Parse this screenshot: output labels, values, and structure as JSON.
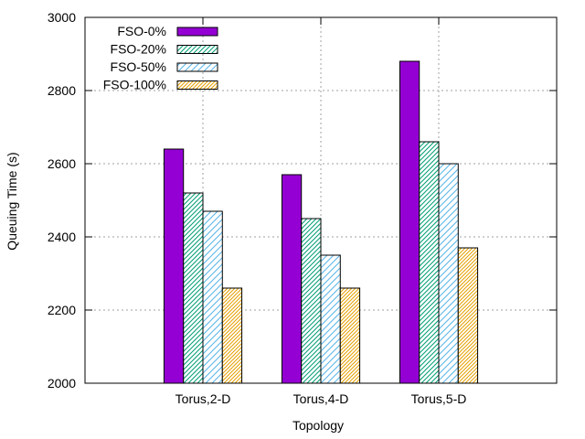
{
  "chart_data": {
    "type": "bar",
    "title": "",
    "xlabel": "Topology",
    "ylabel": "Queuing Time (s)",
    "ylim": [
      2000,
      3000
    ],
    "yticks": [
      2000,
      2200,
      2400,
      2600,
      2800,
      3000
    ],
    "xlim": [
      -1,
      3
    ],
    "grid": true,
    "legend_position": "top-left",
    "categories": [
      "Torus,2-D",
      "Torus,4-D",
      "Torus,5-D"
    ],
    "series": [
      {
        "name": "FSO-0%",
        "values": [
          2640,
          2570,
          2880
        ],
        "color": "#9400d3",
        "pattern": "solid"
      },
      {
        "name": "FSO-20%",
        "values": [
          2520,
          2450,
          2660
        ],
        "color": "#009e73",
        "pattern": "hatch-dense"
      },
      {
        "name": "FSO-50%",
        "values": [
          2470,
          2350,
          2600
        ],
        "color": "#56b4e9",
        "pattern": "hatch-sparse"
      },
      {
        "name": "FSO-100%",
        "values": [
          2260,
          2260,
          2370
        ],
        "color": "#e69f00",
        "pattern": "hatch-dense"
      }
    ]
  }
}
